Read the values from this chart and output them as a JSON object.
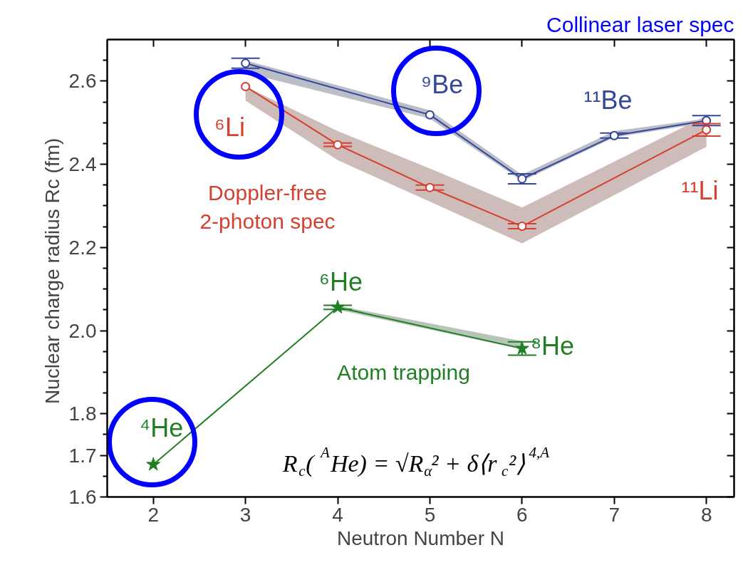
{
  "chart_data": {
    "type": "line",
    "title": "Collinear laser spec",
    "xlabel": "Neutron Number N",
    "ylabel": "Nuclear charge radius  Rc (fm)",
    "xlim": [
      1.5,
      8.3
    ],
    "ylim": [
      1.6,
      2.7
    ],
    "xticks": [
      2,
      3,
      4,
      5,
      6,
      7,
      8
    ],
    "yticks": [
      1.6,
      {
        "value": 1.65,
        "label": null
      },
      1.7,
      {
        "value": 1.75,
        "label": null
      },
      1.8,
      {
        "value": 1.85,
        "label": null
      },
      {
        "value": 1.9,
        "label": null
      },
      {
        "value": 1.95,
        "label": null
      },
      {
        "value": 2,
        "label": "2.0"
      },
      {
        "value": 2.05,
        "label": null
      },
      {
        "value": 2.1,
        "label": null
      },
      {
        "value": 2.15,
        "label": null
      },
      2.2,
      {
        "value": 2.25,
        "label": null
      },
      {
        "value": 2.3,
        "label": null
      },
      {
        "value": 2.35,
        "label": null
      },
      2.4,
      {
        "value": 2.45,
        "label": null
      },
      {
        "value": 2.5,
        "label": null
      },
      {
        "value": 2.55,
        "label": null
      },
      2.6,
      {
        "value": 2.65,
        "label": null
      }
    ],
    "grid": false,
    "series": [
      {
        "color": "#34479b",
        "marker": "circle",
        "x": [
          3,
          5,
          6,
          7,
          8
        ],
        "values": [
          2.643,
          2.519,
          2.365,
          2.469,
          2.505
        ],
        "errors": [
          0.012,
          null,
          0.012,
          0.006,
          0.012
        ],
        "lower": [
          2.62,
          2.51,
          2.36,
          2.465,
          2.5
        ],
        "upper": [
          2.65,
          2.53,
          2.375,
          2.48,
          2.51
        ]
      },
      {
        "color": "#d6402e",
        "marker": "circle",
        "x": [
          3,
          4,
          5,
          6,
          8
        ],
        "values": [
          2.587,
          2.447,
          2.344,
          2.251,
          2.483
        ],
        "errors": [
          null,
          0.004,
          0.006,
          0.006,
          0.015
        ],
        "lower": [
          2.553,
          2.41,
          2.31,
          2.21,
          2.442
        ],
        "upper": [
          2.587,
          2.48,
          2.39,
          2.296,
          2.517
        ]
      },
      {
        "color": "#1f7f22",
        "marker": "star",
        "x": [
          2,
          4,
          6
        ],
        "values": [
          1.678,
          2.056,
          1.957
        ],
        "errors": [
          null,
          0.005,
          0.016
        ],
        "lower": [
          null,
          2.05,
          1.955
        ],
        "upper": [
          null,
          2.06,
          1.975
        ]
      }
    ],
    "annotations": [
      "⁶Li",
      "⁹Be",
      "¹¹Be",
      "¹¹Li",
      "⁴He",
      "⁶He",
      "⁸He",
      "Doppler-free\n2-photon spec",
      "Atom trapping",
      "R$_{c}$( $^{A}$He) = √R$_{α}$² + δ⟨r$_{c}$²⟩$^{4,A}$"
    ]
  }
}
